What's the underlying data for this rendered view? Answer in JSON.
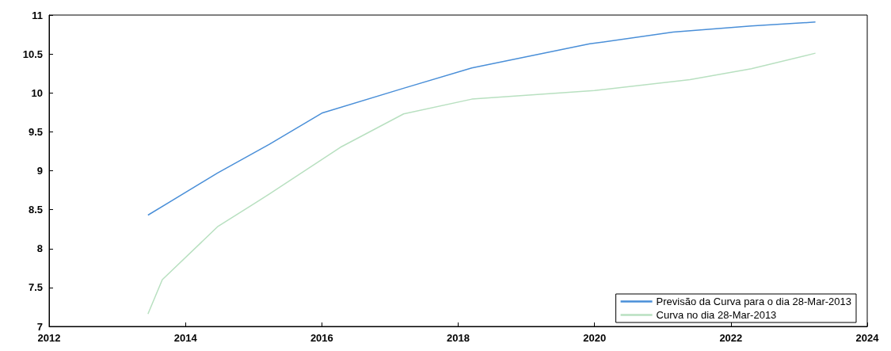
{
  "chart_data": {
    "type": "line",
    "xlim": [
      2012,
      2024
    ],
    "xticks": [
      2012,
      2014,
      2016,
      2018,
      2020,
      2022,
      2024
    ],
    "ylim": [
      7,
      11
    ],
    "yticks": [
      7,
      7.5,
      8,
      8.5,
      9,
      9.5,
      10,
      10.5,
      11
    ],
    "grid": false,
    "legend": "bottom right",
    "marker": "none",
    "line_style": "solid",
    "series": [
      {
        "name": "Previsão da Curva para o dia 28-Mar-2013",
        "color": "#4a8fd8",
        "x": [
          2013.45,
          2014.47,
          2015.23,
          2016.0,
          2017.2,
          2018.2,
          2019.93,
          2021.15,
          2022.3,
          2023.24
        ],
        "values": [
          8.43,
          8.97,
          9.34,
          9.74,
          10.06,
          10.32,
          10.63,
          10.78,
          10.86,
          10.91
        ]
      },
      {
        "name": "Curva no dia 28-Mar-2013",
        "color": "#b8e0c0",
        "x": [
          2013.45,
          2013.66,
          2014.47,
          2015.23,
          2016.27,
          2017.2,
          2018.2,
          2020.0,
          2021.4,
          2022.3,
          2023.24
        ],
        "values": [
          7.16,
          7.6,
          8.28,
          8.7,
          9.3,
          9.73,
          9.92,
          10.03,
          10.17,
          10.31,
          10.51
        ]
      }
    ]
  }
}
